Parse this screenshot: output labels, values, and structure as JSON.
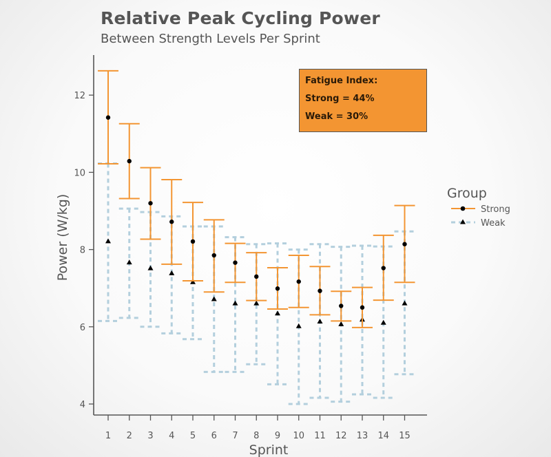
{
  "header": {
    "title": "Relative Peak Cycling Power",
    "subtitle": "Between Strength Levels Per Sprint"
  },
  "annotation": {
    "line1": "Fatigue Index:",
    "line2": "Strong = 44%",
    "line3": "Weak = 30%"
  },
  "colors": {
    "strong": "#f39532",
    "weak": "#b3cfdd",
    "annotation_bg": "#f39532"
  },
  "chart_data": {
    "type": "scatter",
    "title": "Relative Peak Cycling Power",
    "subtitle": "Between Strength Levels Per Sprint",
    "xlabel": "Sprint",
    "ylabel": "Power (W/kg)",
    "x": [
      1,
      2,
      3,
      4,
      5,
      6,
      7,
      8,
      9,
      10,
      11,
      12,
      13,
      14,
      15
    ],
    "x_ticks": [
      "1",
      "2",
      "3",
      "4",
      "5",
      "6",
      "7",
      "8",
      "9",
      "10",
      "11",
      "12",
      "13",
      "14",
      "15"
    ],
    "y_ticks": [
      "4",
      "6",
      "8",
      "10",
      "12"
    ],
    "xlim": [
      0.1,
      16.5
    ],
    "ylim": [
      3.6,
      13.1
    ],
    "grid": false,
    "legend": {
      "title": "Group",
      "placement": "right"
    },
    "series": [
      {
        "name": "Strong",
        "marker": "circle",
        "values": [
          11.42,
          10.29,
          9.2,
          8.72,
          8.21,
          7.85,
          7.66,
          7.3,
          6.99,
          7.17,
          6.93,
          6.54,
          6.5,
          7.52,
          8.14
        ],
        "error_low": [
          10.22,
          9.32,
          8.27,
          7.62,
          7.19,
          6.9,
          7.15,
          6.68,
          6.46,
          6.5,
          6.31,
          6.15,
          5.98,
          6.69,
          7.15
        ],
        "error_high": [
          12.63,
          11.26,
          10.12,
          9.81,
          9.22,
          8.77,
          8.16,
          7.92,
          7.53,
          7.85,
          7.56,
          6.92,
          7.02,
          8.37,
          9.14
        ]
      },
      {
        "name": "Weak",
        "marker": "triangle",
        "values": [
          8.21,
          7.66,
          7.51,
          7.38,
          7.15,
          6.71,
          6.6,
          6.6,
          6.34,
          6.01,
          6.13,
          6.06,
          6.18,
          6.1,
          6.6
        ],
        "error_low": [
          6.15,
          6.23,
          6.0,
          5.83,
          5.68,
          4.83,
          4.83,
          5.03,
          4.51,
          4.0,
          4.16,
          4.06,
          4.25,
          4.16,
          4.77
        ],
        "error_high": [
          10.23,
          9.06,
          8.97,
          8.86,
          8.6,
          8.6,
          8.32,
          8.14,
          8.16,
          8.0,
          8.14,
          8.07,
          8.1,
          8.08,
          8.47
        ]
      }
    ]
  }
}
